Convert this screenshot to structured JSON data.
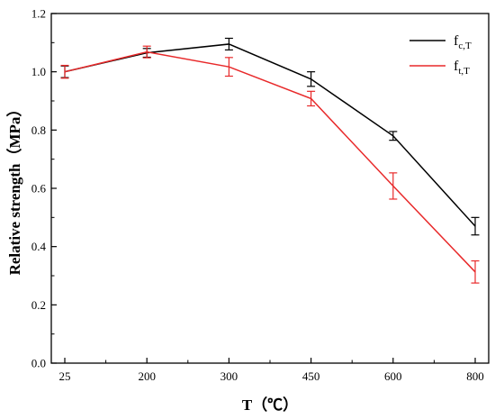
{
  "chart_data": {
    "type": "line",
    "xlabel": "T（℃）",
    "ylabel": "Relative strength（MPa）",
    "categories": [
      "25",
      "200",
      "300",
      "450",
      "600",
      "800"
    ],
    "ylim": [
      0,
      1.2
    ],
    "yticks": [
      "0.0",
      "0.2",
      "0.4",
      "0.6",
      "0.8",
      "1.0",
      "1.2"
    ],
    "legend_position": "top-right",
    "grid": false,
    "series": [
      {
        "name_main": "f",
        "name_sub": "c,T",
        "color": "#000000",
        "values": [
          1.0,
          1.065,
          1.095,
          0.975,
          0.78,
          0.47
        ],
        "errors": [
          0.02,
          0.015,
          0.02,
          0.025,
          0.015,
          0.03
        ]
      },
      {
        "name_main": "f",
        "name_sub": "t,T",
        "color": "#e8292a",
        "values": [
          1.0,
          1.068,
          1.017,
          0.908,
          0.608,
          0.313
        ],
        "errors": [
          0.022,
          0.02,
          0.032,
          0.025,
          0.045,
          0.038
        ]
      }
    ]
  }
}
